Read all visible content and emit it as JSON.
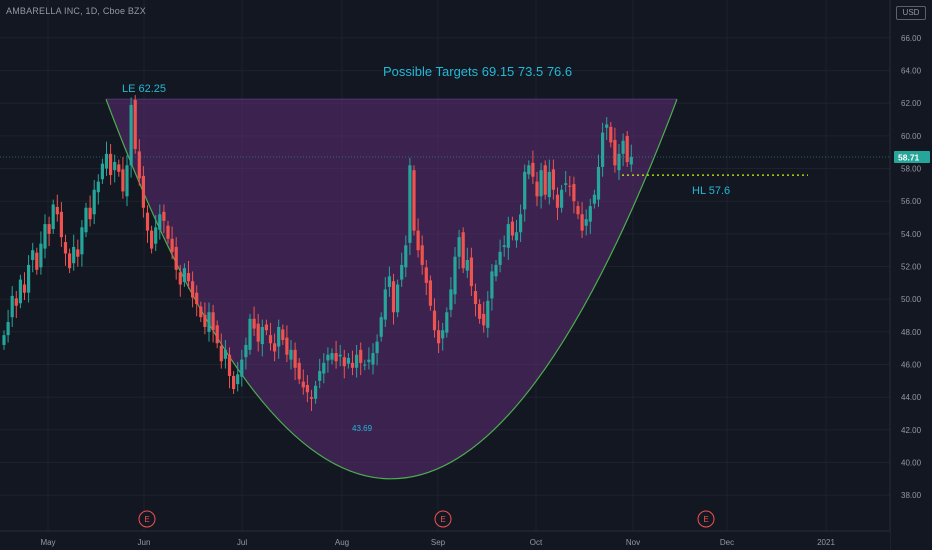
{
  "header": {
    "symbol": "AMBARELLA INC, 1D, Cboe BZX",
    "currency": "USD"
  },
  "price_axis": {
    "ticks": [
      "38.00",
      "40.00",
      "42.00",
      "44.00",
      "46.00",
      "48.00",
      "50.00",
      "52.00",
      "54.00",
      "56.00",
      "58.00",
      "60.00",
      "62.00",
      "64.00",
      "66.00"
    ],
    "last_price_label": "58.71"
  },
  "time_axis": {
    "labels": [
      "May",
      "Jun",
      "Jul",
      "Aug",
      "Sep",
      "Oct",
      "Nov",
      "Dec",
      "2021"
    ]
  },
  "annotations": {
    "targets": "Possible Targets  69.15  73.5   76.6",
    "le": "LE 62.25",
    "hl": "HL 57.6",
    "low": "43.69",
    "earnings_marker": "E"
  },
  "colors": {
    "background": "#131722",
    "up": "#26a69a",
    "down": "#ef5350",
    "cup_fill": "#5e2b72",
    "cup_line": "#4caf50",
    "annotation": "#22b8d6",
    "hl_line": "#c6ff00",
    "earnings": "#ef5350"
  },
  "chart_data": {
    "type": "candlestick",
    "series": "AMBARELLA INC daily",
    "ylim": [
      36,
      68
    ],
    "x": [
      "May",
      "Jun",
      "Jul",
      "Aug",
      "Sep",
      "Oct",
      "Nov",
      "Dec",
      "2021"
    ],
    "last_price": 58.71,
    "le_level": 62.25,
    "hl_level": 57.6,
    "cup_low": 43.69,
    "targets": [
      69.15,
      73.5,
      76.6
    ],
    "closes": [
      47.8,
      48.6,
      50.2,
      49.6,
      51.2,
      50.4,
      52.1,
      53.0,
      51.8,
      53.4,
      54.6,
      54.0,
      55.8,
      55.2,
      53.8,
      52.8,
      51.9,
      53.2,
      52.6,
      54.4,
      55.6,
      54.9,
      56.7,
      57.2,
      58.3,
      58.9,
      57.6,
      58.4,
      57.8,
      56.6,
      58.2,
      61.9,
      59.2,
      57.4,
      55.6,
      54.2,
      53.1,
      54.4,
      55.2,
      54.8,
      53.7,
      52.9,
      51.8,
      50.9,
      51.9,
      51.1,
      50.1,
      49.7,
      48.9,
      48.3,
      49.2,
      48.1,
      47.3,
      46.2,
      46.9,
      45.3,
      44.5,
      45.4,
      46.3,
      47.2,
      48.8,
      48.2,
      47.4,
      48.3,
      48.1,
      47.3,
      46.8,
      48.3,
      47.5,
      46.6,
      46.9,
      45.8,
      45.1,
      44.6,
      44.3,
      43.9,
      44.7,
      45.6,
      46.1,
      46.6,
      46.7,
      46.2,
      46.6,
      45.9,
      46.4,
      45.8,
      46.6,
      46.1,
      46.0,
      46.3,
      46.7,
      47.4,
      48.9,
      50.6,
      51.4,
      49.2,
      50.9,
      52.1,
      53.3,
      58.2,
      54.2,
      53.0,
      52.1,
      51.0,
      49.6,
      48.1,
      47.3,
      48.1,
      49.2,
      50.6,
      52.6,
      53.8,
      51.9,
      52.4,
      50.8,
      49.7,
      48.8,
      48.4,
      49.9,
      51.7,
      52.1,
      52.9,
      53.3,
      54.6,
      53.9,
      54.1,
      55.2,
      57.8,
      58.2,
      57.5,
      56.3,
      57.9,
      56.4,
      57.8,
      56.7,
      55.6,
      56.7,
      57.1,
      56.9,
      56.0,
      55.2,
      54.2,
      54.9,
      55.7,
      56.4,
      58.1,
      60.2,
      60.7,
      59.6,
      58.2,
      58.9,
      59.7,
      58.4,
      58.71
    ],
    "cup_curve": [
      [
        0,
        62.25
      ],
      [
        65,
        39.3
      ],
      [
        117,
        62.25
      ]
    ]
  }
}
